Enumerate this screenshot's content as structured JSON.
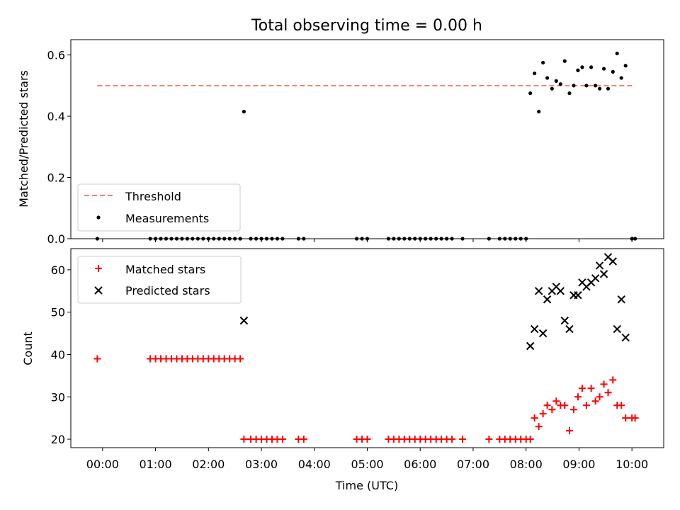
{
  "chart_data": [
    {
      "type": "scatter",
      "title": "Total observing time = 0.00 h",
      "ylabel": "Matched/Predicted stars",
      "ylim": [
        0,
        0.65
      ],
      "yticks": [
        0.0,
        0.2,
        0.4,
        0.6
      ],
      "ytick_labels": [
        "0.0",
        "0.2",
        "0.4",
        "0.6"
      ],
      "legend": {
        "placement": "lower-left",
        "entries": [
          "Threshold",
          "Measurements"
        ]
      },
      "threshold": {
        "name": "Threshold",
        "value": 0.5,
        "x_range": [
          -0.1,
          10.0
        ],
        "color": "#f08080"
      },
      "measurements": {
        "name": "Measurements",
        "color": "#000000",
        "x": [
          -0.1,
          0.9,
          1.0,
          1.1,
          1.2,
          1.3,
          1.4,
          1.5,
          1.6,
          1.7,
          1.8,
          1.9,
          2.0,
          2.1,
          2.2,
          2.3,
          2.4,
          2.5,
          2.6,
          2.67,
          2.8,
          2.9,
          3.0,
          3.1,
          3.2,
          3.3,
          3.4,
          3.7,
          3.8,
          4.8,
          4.9,
          5.0,
          5.4,
          5.5,
          5.6,
          5.7,
          5.8,
          5.9,
          6.0,
          6.1,
          6.2,
          6.3,
          6.4,
          6.5,
          6.6,
          6.8,
          7.3,
          7.5,
          7.6,
          7.7,
          7.8,
          7.9,
          8.0,
          8.08,
          8.16,
          8.24,
          8.32,
          8.4,
          8.49,
          8.57,
          8.65,
          8.73,
          8.82,
          8.9,
          8.98,
          9.06,
          9.14,
          9.23,
          9.31,
          9.39,
          9.47,
          9.55,
          9.64,
          9.72,
          9.8,
          9.88,
          10.0,
          10.06
        ],
        "y": [
          0,
          0,
          0,
          0,
          0,
          0,
          0,
          0,
          0,
          0,
          0,
          0,
          0,
          0,
          0,
          0,
          0,
          0,
          0,
          0.415,
          0,
          0,
          0,
          0,
          0,
          0,
          0,
          0,
          0,
          0,
          0,
          0,
          0,
          0,
          0,
          0,
          0,
          0,
          0,
          0,
          0,
          0,
          0,
          0,
          0,
          0,
          0,
          0,
          0,
          0,
          0,
          0,
          0,
          0.475,
          0.54,
          0.415,
          0.575,
          0.525,
          0.49,
          0.515,
          0.505,
          0.58,
          0.475,
          0.5,
          0.55,
          0.56,
          0.5,
          0.56,
          0.5,
          0.49,
          0.555,
          0.49,
          0.545,
          0.605,
          0.525,
          0.565,
          0,
          0
        ]
      }
    },
    {
      "type": "scatter",
      "xlabel": "Time (UTC)",
      "ylabel": "Count",
      "ylim": [
        18,
        65
      ],
      "yticks": [
        20,
        30,
        40,
        50,
        60
      ],
      "ytick_labels": [
        "20",
        "30",
        "40",
        "50",
        "60"
      ],
      "xlim": [
        -0.6,
        10.6
      ],
      "xticks": [
        0,
        1,
        2,
        3,
        4,
        5,
        6,
        7,
        8,
        9,
        10
      ],
      "xtick_labels": [
        "00:00",
        "01:00",
        "02:00",
        "03:00",
        "04:00",
        "05:00",
        "06:00",
        "07:00",
        "08:00",
        "09:00",
        "10:00"
      ],
      "legend": {
        "placement": "top-left",
        "entries": [
          "Matched stars",
          "Predicted stars"
        ]
      },
      "series": [
        {
          "name": "Matched stars",
          "marker": "plus",
          "color": "#ff0000",
          "x": [
            -0.1,
            0.9,
            1.0,
            1.1,
            1.2,
            1.3,
            1.4,
            1.5,
            1.6,
            1.7,
            1.8,
            1.9,
            2.0,
            2.1,
            2.2,
            2.3,
            2.4,
            2.5,
            2.6,
            2.67,
            2.8,
            2.9,
            3.0,
            3.1,
            3.2,
            3.3,
            3.4,
            3.7,
            3.8,
            4.8,
            4.9,
            5.0,
            5.4,
            5.5,
            5.6,
            5.7,
            5.8,
            5.9,
            6.0,
            6.1,
            6.2,
            6.3,
            6.4,
            6.5,
            6.6,
            6.8,
            7.3,
            7.5,
            7.6,
            7.7,
            7.8,
            7.9,
            8.0,
            8.08,
            8.16,
            8.24,
            8.32,
            8.4,
            8.49,
            8.57,
            8.65,
            8.73,
            8.82,
            8.9,
            8.98,
            9.06,
            9.14,
            9.23,
            9.31,
            9.39,
            9.47,
            9.55,
            9.64,
            9.72,
            9.8,
            9.88,
            10.0,
            10.06
          ],
          "y": [
            39,
            39,
            39,
            39,
            39,
            39,
            39,
            39,
            39,
            39,
            39,
            39,
            39,
            39,
            39,
            39,
            39,
            39,
            39,
            20,
            20,
            20,
            20,
            20,
            20,
            20,
            20,
            20,
            20,
            20,
            20,
            20,
            20,
            20,
            20,
            20,
            20,
            20,
            20,
            20,
            20,
            20,
            20,
            20,
            20,
            20,
            20,
            20,
            20,
            20,
            20,
            20,
            20,
            20,
            25,
            23,
            26,
            28,
            27,
            29,
            28,
            28,
            22,
            27,
            30,
            32,
            28,
            32,
            29,
            30,
            33,
            31,
            34,
            28,
            28,
            25,
            25,
            25
          ]
        },
        {
          "name": "Predicted stars",
          "marker": "x",
          "color": "#000000",
          "x": [
            2.67,
            8.08,
            8.16,
            8.24,
            8.32,
            8.4,
            8.49,
            8.57,
            8.65,
            8.73,
            8.82,
            8.9,
            8.98,
            9.06,
            9.14,
            9.23,
            9.31,
            9.39,
            9.47,
            9.55,
            9.64,
            9.72,
            9.8,
            9.88
          ],
          "y": [
            48,
            42,
            46,
            55,
            45,
            53,
            55,
            56,
            55,
            48,
            46,
            54,
            54,
            57,
            56,
            57,
            58,
            61,
            59,
            63,
            62,
            46,
            53,
            44
          ]
        }
      ]
    }
  ]
}
